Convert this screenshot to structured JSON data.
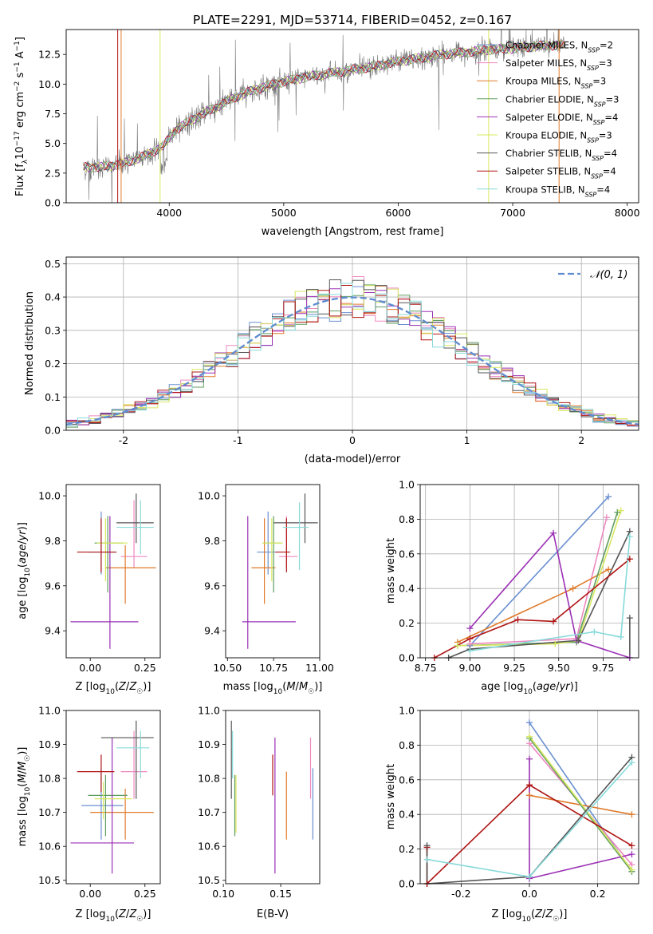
{
  "figure": {
    "title": "PLATE=2291, MJD=53714, FIBERID=0452, z=0.167"
  },
  "models": [
    {
      "name": "Chabrier MILES",
      "n": "2",
      "color": "#6a8fd0"
    },
    {
      "name": "Salpeter MILES",
      "n": "3",
      "color": "#ee88c0"
    },
    {
      "name": "Kroupa MILES",
      "n": "3",
      "color": "#e07a2a"
    },
    {
      "name": "Chabrier ELODIE",
      "n": "3",
      "color": "#5f9e5f"
    },
    {
      "name": "Salpeter ELODIE",
      "n": "4",
      "color": "#9b30b5"
    },
    {
      "name": "Kroupa ELODIE",
      "n": "3",
      "color": "#d8e860"
    },
    {
      "name": "Chabrier STELIB",
      "n": "4",
      "color": "#555555"
    },
    {
      "name": "Salpeter STELIB",
      "n": "4",
      "color": "#b01515"
    },
    {
      "name": "Kroupa STELIB",
      "n": "4",
      "color": "#88dada"
    }
  ],
  "chart_data": [
    {
      "id": "spectrum",
      "type": "line",
      "xlabel": "wavelength [Angstrom, rest frame]",
      "ylabel": "Flux [f_λ 10⁻¹⁷ erg cm⁻² s⁻¹ A⁻¹]",
      "xlim": [
        3100,
        8100
      ],
      "ylim": [
        0,
        14.6
      ],
      "xticks": [
        4000,
        5000,
        6000,
        7000,
        8000
      ],
      "yticks": [
        0.0,
        2.5,
        5.0,
        7.5,
        10.0,
        12.5
      ],
      "continuum": {
        "x": [
          3250,
          3400,
          3600,
          3800,
          3950,
          4050,
          4200,
          4400,
          4600,
          4800,
          5000,
          5200,
          5400,
          5600,
          5800,
          6000,
          6200,
          6400,
          6600,
          6800,
          7000,
          7200,
          7400
        ],
        "y": [
          3.0,
          3.0,
          3.3,
          4.0,
          4.8,
          6.1,
          7.0,
          8.0,
          9.0,
          9.7,
          10.2,
          10.6,
          10.9,
          11.2,
          11.5,
          11.9,
          12.2,
          12.5,
          12.7,
          12.9,
          13.0,
          13.2,
          13.3
        ]
      },
      "legend_position": "upper right"
    },
    {
      "id": "residuals",
      "type": "histogram",
      "xlabel": "(data-model)/error",
      "ylabel": "Normed distribution",
      "xlim": [
        -2.5,
        2.5
      ],
      "ylim": [
        0,
        0.52
      ],
      "xticks": [
        -2,
        -1,
        0,
        1,
        2
      ],
      "yticks": [
        0.0,
        0.1,
        0.2,
        0.3,
        0.4,
        0.5
      ],
      "bin_width": 0.1,
      "gaussian_label": "𝒩(0, 1)",
      "grid": true,
      "legend_position": "upper right"
    },
    {
      "id": "age_vs_Z",
      "type": "errorbar",
      "xlabel": "Z [log₁₀(Z/Z☉)]",
      "ylabel": "age  [log₁₀(age/yr)]",
      "xlim": [
        -0.11,
        0.32
      ],
      "ylim": [
        9.28,
        10.05
      ],
      "xticks": [
        0.0,
        0.25
      ],
      "yticks": [
        9.4,
        9.6,
        9.8,
        10.0
      ],
      "points": [
        {
          "x": 0.05,
          "xlo": -0.01,
          "xhi": 0.12,
          "y": 9.75,
          "ylo": 9.65,
          "yhi": 9.93
        },
        {
          "x": 0.2,
          "xlo": 0.14,
          "xhi": 0.26,
          "y": 9.73,
          "ylo": 9.68,
          "yhi": 9.98
        },
        {
          "x": 0.16,
          "xlo": 0.07,
          "xhi": 0.3,
          "y": 9.68,
          "ylo": 9.52,
          "yhi": 9.78
        },
        {
          "x": 0.08,
          "xlo": 0.02,
          "xhi": 0.15,
          "y": 9.79,
          "ylo": 9.57,
          "yhi": 9.91
        },
        {
          "x": 0.09,
          "xlo": -0.09,
          "xhi": 0.22,
          "y": 9.44,
          "ylo": 9.32,
          "yhi": 9.91
        },
        {
          "x": 0.07,
          "xlo": 0.03,
          "xhi": 0.17,
          "y": 9.79,
          "ylo": 9.62,
          "yhi": 9.9
        },
        {
          "x": 0.21,
          "xlo": 0.12,
          "xhi": 0.29,
          "y": 9.88,
          "ylo": 9.79,
          "yhi": 10.01
        },
        {
          "x": 0.05,
          "xlo": -0.06,
          "xhi": 0.12,
          "y": 9.75,
          "ylo": 9.66,
          "yhi": 9.9
        },
        {
          "x": 0.23,
          "xlo": 0.12,
          "xhi": 0.29,
          "y": 9.86,
          "ylo": 9.74,
          "yhi": 9.98
        }
      ]
    },
    {
      "id": "age_vs_mass",
      "type": "errorbar",
      "xlabel": "mass [log₁₀(M/M☉)]",
      "ylabel": "",
      "xlim": [
        10.49,
        11.0
      ],
      "ylim": [
        9.28,
        10.05
      ],
      "xticks": [
        10.5,
        10.75,
        11.0
      ],
      "yticks": [
        9.4,
        9.6,
        9.8,
        10.0
      ],
      "points": [
        {
          "x": 10.72,
          "xlo": 10.66,
          "xhi": 10.76,
          "y": 9.75,
          "ylo": 9.65,
          "yhi": 9.93
        },
        {
          "x": 10.82,
          "xlo": 10.78,
          "xhi": 10.88,
          "y": 9.73,
          "ylo": 9.68,
          "yhi": 9.91
        },
        {
          "x": 10.7,
          "xlo": 10.63,
          "xhi": 10.76,
          "y": 9.68,
          "ylo": 9.52,
          "yhi": 9.9
        },
        {
          "x": 10.75,
          "xlo": 10.69,
          "xhi": 10.79,
          "y": 9.79,
          "ylo": 9.57,
          "yhi": 9.91
        },
        {
          "x": 10.61,
          "xlo": 10.58,
          "xhi": 10.87,
          "y": 9.44,
          "ylo": 9.32,
          "yhi": 9.91
        },
        {
          "x": 10.74,
          "xlo": 10.69,
          "xhi": 10.8,
          "y": 9.79,
          "ylo": 9.62,
          "yhi": 9.9
        },
        {
          "x": 10.92,
          "xlo": 10.75,
          "xhi": 10.99,
          "y": 9.88,
          "ylo": 9.79,
          "yhi": 10.01
        },
        {
          "x": 10.82,
          "xlo": 10.76,
          "xhi": 10.84,
          "y": 9.75,
          "ylo": 9.66,
          "yhi": 9.9
        },
        {
          "x": 10.89,
          "xlo": 10.8,
          "xhi": 10.94,
          "y": 9.86,
          "ylo": 9.67,
          "yhi": 9.97
        }
      ]
    },
    {
      "id": "mass_weight_vs_age",
      "type": "line",
      "xlabel": "age  [log₁₀(age/yr)]",
      "ylabel": "mass weight",
      "xlim": [
        8.72,
        9.95
      ],
      "ylim": [
        0,
        1.0
      ],
      "xticks": [
        8.75,
        9.0,
        9.25,
        9.5,
        9.75
      ],
      "yticks": [
        0.0,
        0.2,
        0.4,
        0.6,
        0.8,
        1.0
      ],
      "grid": true,
      "series": [
        {
          "model": 0,
          "x": [
            9.0,
            9.78
          ],
          "y": [
            0.07,
            0.93
          ]
        },
        {
          "model": 1,
          "x": [
            9.0,
            9.6,
            9.77
          ],
          "y": [
            0.08,
            0.11,
            0.81
          ]
        },
        {
          "model": 2,
          "x": [
            8.93,
            9.58,
            9.78
          ],
          "y": [
            0.09,
            0.4,
            0.51
          ]
        },
        {
          "model": 3,
          "x": [
            8.93,
            9.6,
            9.83
          ],
          "y": [
            0.07,
            0.09,
            0.84
          ]
        },
        {
          "model": 4,
          "x": [
            9.0,
            9.47,
            9.6,
            9.9
          ],
          "y": [
            0.17,
            0.72,
            0.1,
            0.0
          ]
        },
        {
          "model": 5,
          "x": [
            8.93,
            9.48,
            9.61,
            9.85
          ],
          "y": [
            0.07,
            0.08,
            0.1,
            0.85
          ]
        },
        {
          "model": 6,
          "x": [
            8.88,
            9.0,
            9.61,
            9.9
          ],
          "y": [
            0.0,
            0.05,
            0.1,
            0.73
          ]
        },
        {
          "model": 7,
          "x": [
            8.8,
            9.0,
            9.27,
            9.47,
            9.9
          ],
          "y": [
            0.0,
            0.11,
            0.22,
            0.21,
            0.57
          ]
        },
        {
          "model": 8,
          "x": [
            9.0,
            9.7,
            9.85,
            9.9
          ],
          "y": [
            0.04,
            0.15,
            0.12,
            0.7
          ]
        }
      ],
      "extra_points": [
        {
          "model": 6,
          "x": 9.9,
          "y": 0.23
        }
      ]
    },
    {
      "id": "mass_vs_Z",
      "type": "errorbar",
      "xlabel": "Z [log₁₀(Z/Z☉)]",
      "ylabel": "mass [log₁₀(M/M☉)]",
      "xlim": [
        -0.11,
        0.32
      ],
      "ylim": [
        10.49,
        11.0
      ],
      "xticks": [
        0.0,
        0.25
      ],
      "yticks": [
        10.5,
        10.6,
        10.7,
        10.8,
        10.9,
        11.0
      ],
      "points": [
        {
          "x": 0.05,
          "xlo": -0.04,
          "xhi": 0.15,
          "y": 10.72,
          "ylo": 10.62,
          "yhi": 10.83
        },
        {
          "x": 0.2,
          "xlo": 0.14,
          "xhi": 0.26,
          "y": 10.82,
          "ylo": 10.74,
          "yhi": 10.94
        },
        {
          "x": 0.16,
          "xlo": 0.0,
          "xhi": 0.29,
          "y": 10.7,
          "ylo": 10.62,
          "yhi": 10.77
        },
        {
          "x": 0.07,
          "xlo": -0.01,
          "xhi": 0.17,
          "y": 10.75,
          "ylo": 10.63,
          "yhi": 10.81
        },
        {
          "x": 0.1,
          "xlo": -0.09,
          "xhi": 0.2,
          "y": 10.61,
          "ylo": 10.52,
          "yhi": 10.92
        },
        {
          "x": 0.06,
          "xlo": 0.02,
          "xhi": 0.19,
          "y": 10.74,
          "ylo": 10.68,
          "yhi": 10.79
        },
        {
          "x": 0.21,
          "xlo": 0.05,
          "xhi": 0.29,
          "y": 10.92,
          "ylo": 10.74,
          "yhi": 10.97
        },
        {
          "x": 0.05,
          "xlo": -0.06,
          "xhi": 0.11,
          "y": 10.82,
          "ylo": 10.76,
          "yhi": 10.87
        },
        {
          "x": 0.23,
          "xlo": 0.12,
          "xhi": 0.27,
          "y": 10.89,
          "ylo": 10.8,
          "yhi": 10.94
        }
      ]
    },
    {
      "id": "mass_vs_ebv",
      "type": "errorbar",
      "xlabel": "E(B-V)",
      "ylabel": "",
      "xlim": [
        0.102,
        0.184
      ],
      "ylim": [
        10.49,
        11.0
      ],
      "xticks": [
        0.1,
        0.15
      ],
      "yticks": [
        10.5,
        10.6,
        10.7,
        10.8,
        10.9,
        11.0
      ],
      "points": [
        {
          "x": 0.178,
          "ylo": 10.62,
          "yhi": 10.83
        },
        {
          "x": 0.176,
          "ylo": 10.74,
          "yhi": 10.92
        },
        {
          "x": 0.155,
          "ylo": 10.62,
          "yhi": 10.82
        },
        {
          "x": 0.11,
          "ylo": 10.63,
          "yhi": 10.81
        },
        {
          "x": 0.145,
          "ylo": 10.52,
          "yhi": 10.92
        },
        {
          "x": 0.111,
          "ylo": 10.64,
          "yhi": 10.81
        },
        {
          "x": 0.107,
          "ylo": 10.74,
          "yhi": 10.97
        },
        {
          "x": 0.143,
          "ylo": 10.75,
          "yhi": 10.87
        },
        {
          "x": 0.108,
          "ylo": 10.8,
          "yhi": 10.94
        }
      ]
    },
    {
      "id": "mass_weight_vs_Z",
      "type": "line",
      "xlabel": "Z [log₁₀(Z/Z☉)]",
      "ylabel": "mass weight",
      "xlim": [
        -0.32,
        0.32
      ],
      "ylim": [
        0,
        1.0
      ],
      "xticks": [
        -0.2,
        0.0,
        0.2
      ],
      "yticks": [
        0.0,
        0.2,
        0.4,
        0.6,
        0.8,
        1.0
      ],
      "grid": true,
      "series": [
        {
          "model": 0,
          "x": [
            0.0,
            0.3
          ],
          "y": [
            0.93,
            0.07
          ]
        },
        {
          "model": 1,
          "x": [
            0.0,
            0.3
          ],
          "y": [
            0.81,
            0.11
          ]
        },
        {
          "model": 2,
          "x": [
            0.0,
            0.3
          ],
          "y": [
            0.51,
            0.4
          ]
        },
        {
          "model": 3,
          "x": [
            0.0,
            0.3
          ],
          "y": [
            0.84,
            0.07
          ]
        },
        {
          "model": 4,
          "x": [
            0.0,
            0.0,
            0.3
          ],
          "y": [
            0.72,
            0.03,
            0.17
          ]
        },
        {
          "model": 5,
          "x": [
            0.0,
            0.3
          ],
          "y": [
            0.85,
            0.08
          ]
        },
        {
          "model": 6,
          "x": [
            -0.3,
            0.0,
            0.3
          ],
          "y": [
            0.0,
            0.04,
            0.73
          ]
        },
        {
          "model": 7,
          "x": [
            -0.3,
            0.0,
            0.3
          ],
          "y": [
            0.0,
            0.57,
            0.22
          ]
        },
        {
          "model": 8,
          "x": [
            -0.3,
            0.0,
            0.3
          ],
          "y": [
            0.14,
            0.04,
            0.7
          ]
        }
      ],
      "extra_points": [
        {
          "model": 7,
          "x": -0.3,
          "y": 0.21
        },
        {
          "model": 6,
          "x": -0.3,
          "y": 0.22
        }
      ]
    }
  ]
}
